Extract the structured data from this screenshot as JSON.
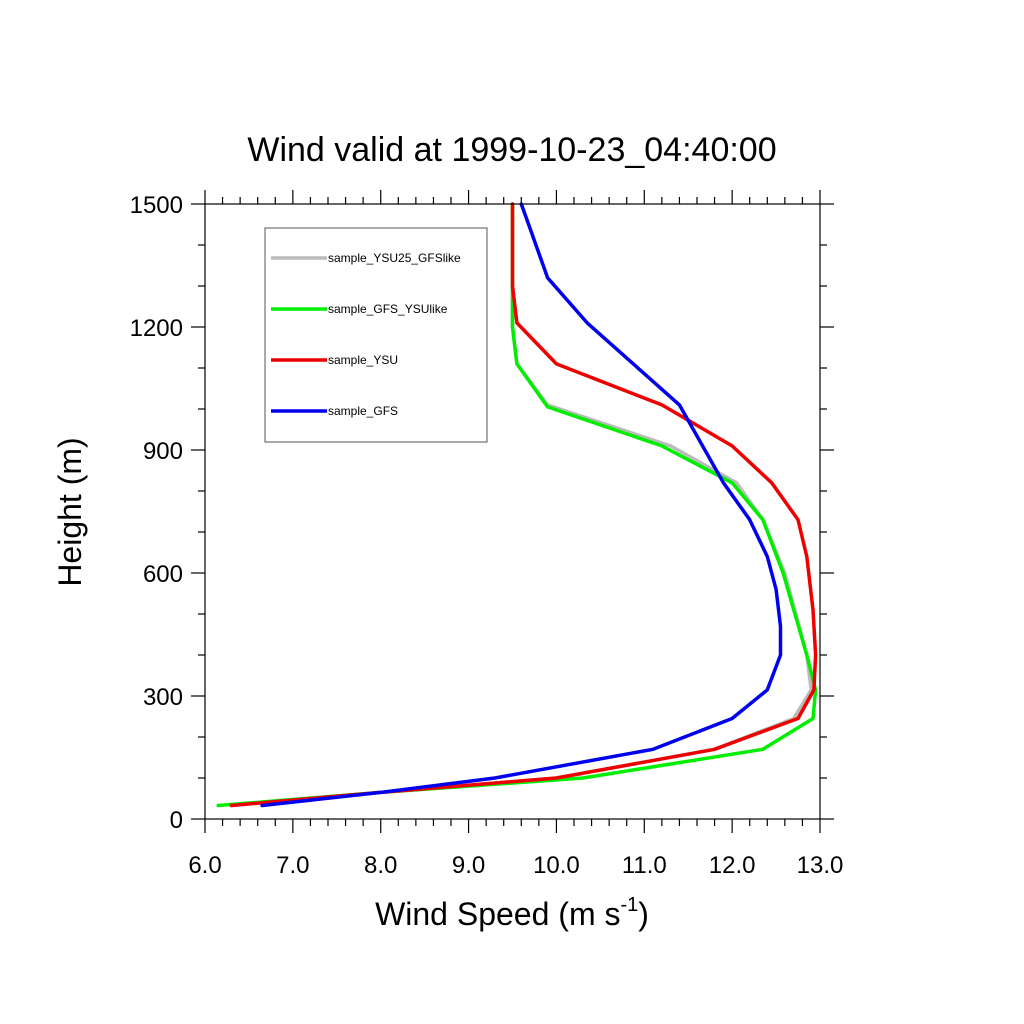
{
  "chart_data": {
    "type": "line",
    "title": "Wind valid at 1999-10-23_04:40:00",
    "xlabel": "Wind Speed (m s",
    "xlabel_sup": "-1",
    "xlabel_close": ")",
    "ylabel": "Height (m)",
    "xlim": [
      6.0,
      13.0
    ],
    "ylim": [
      0,
      1500
    ],
    "xticks": [
      6,
      7,
      8,
      9,
      10,
      11,
      12,
      13
    ],
    "xtick_labels": [
      "6.0",
      "7.0",
      "8.0",
      "9.0",
      "10.0",
      "11.0",
      "12.0",
      "13.0"
    ],
    "yticks": [
      0,
      300,
      600,
      900,
      1200,
      1500
    ],
    "ytick_labels": [
      "0",
      "300",
      "600",
      "900",
      "1200",
      "1500"
    ],
    "grid": false,
    "legend_position": "top-left",
    "series": [
      {
        "name": "sample_YSU25_GFSlike",
        "color": "#bbbbbb",
        "x": [
          6.3,
          8.0,
          10.0,
          11.8,
          12.7,
          12.9,
          12.85,
          12.6,
          12.35,
          12.05,
          11.3,
          9.9,
          9.55,
          9.5,
          9.5
        ],
        "y": [
          33,
          65,
          100,
          170,
          245,
          315,
          400,
          600,
          730,
          820,
          910,
          1010,
          1110,
          1200,
          1500
        ]
      },
      {
        "name": "sample_GFS_YSUlike",
        "color": "#00ee00",
        "x": [
          6.15,
          8.0,
          10.3,
          12.35,
          12.92,
          12.95,
          12.85,
          12.58,
          12.35,
          12.0,
          11.2,
          9.9,
          9.55,
          9.5,
          9.5
        ],
        "y": [
          33,
          65,
          100,
          170,
          245,
          315,
          400,
          600,
          730,
          820,
          910,
          1005,
          1110,
          1200,
          1500
        ]
      },
      {
        "name": "sample_YSU",
        "color": "#ee0000",
        "x": [
          6.3,
          8.0,
          10.0,
          11.8,
          12.75,
          12.93,
          12.95,
          12.92,
          12.85,
          12.75,
          12.45,
          12.0,
          11.2,
          10.0,
          9.55,
          9.5,
          9.5
        ],
        "y": [
          33,
          65,
          100,
          170,
          245,
          315,
          400,
          510,
          640,
          730,
          820,
          910,
          1010,
          1110,
          1210,
          1300,
          1500
        ]
      },
      {
        "name": "sample_GFS",
        "color": "#0000ee",
        "x": [
          6.65,
          8.0,
          9.3,
          11.1,
          12.0,
          12.4,
          12.55,
          12.55,
          12.5,
          12.4,
          12.2,
          11.9,
          11.4,
          10.35,
          9.9,
          9.7,
          9.6
        ],
        "y": [
          33,
          65,
          100,
          170,
          245,
          315,
          400,
          470,
          560,
          640,
          730,
          820,
          1010,
          1210,
          1320,
          1440,
          1500
        ]
      }
    ]
  }
}
